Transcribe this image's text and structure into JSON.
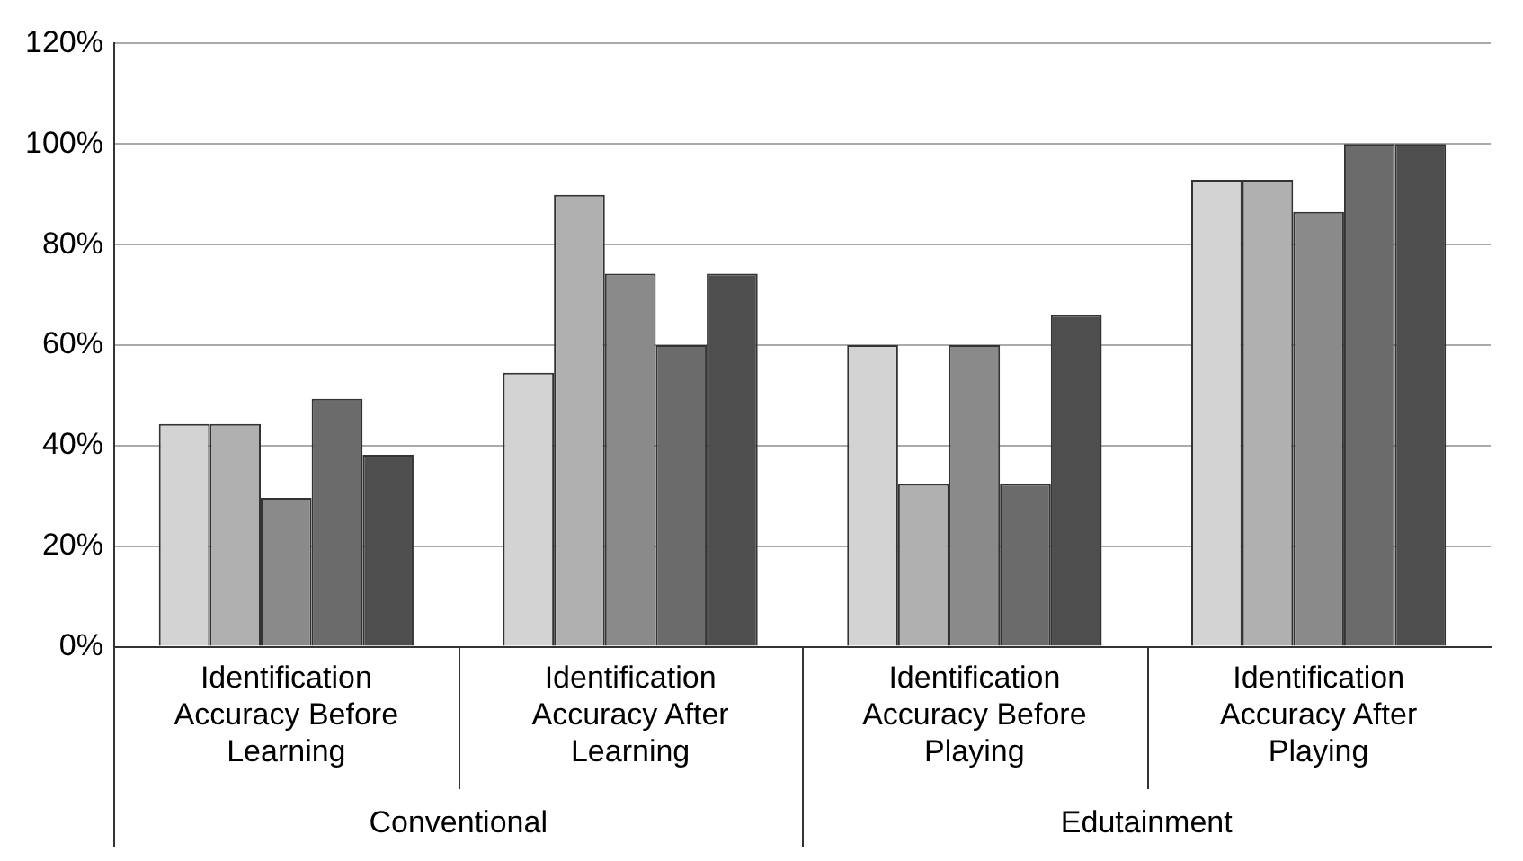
{
  "chart_data": {
    "type": "bar",
    "categories": [
      "Identification Accuracy Before Learning",
      "Identification Accuracy After Learning",
      "Identification Accuracy Before Playing",
      "Identification Accuracy After Playing"
    ],
    "series": [
      {
        "color": "#d3d3d3",
        "values": [
          44.3,
          54.5,
          60,
          92.9
        ]
      },
      {
        "color": "#b0b0b0",
        "values": [
          44.3,
          89.9,
          32.4,
          92.9
        ]
      },
      {
        "color": "#8a8a8a",
        "values": [
          29.6,
          74.2,
          60,
          86.5
        ]
      },
      {
        "color": "#6b6b6b",
        "values": [
          49.3,
          60,
          32.4,
          100
        ]
      },
      {
        "color": "#4e4e4e",
        "values": [
          38.2,
          74.2,
          66,
          100
        ]
      }
    ],
    "ylim": [
      0,
      120
    ],
    "yticks": [
      {
        "value": 0,
        "label": "0%"
      },
      {
        "value": 20,
        "label": "20%"
      },
      {
        "value": 40,
        "label": "40%"
      },
      {
        "value": 60,
        "label": "60%"
      },
      {
        "value": 80,
        "label": "80%"
      },
      {
        "value": 100,
        "label": "100%"
      },
      {
        "value": 120,
        "label": "120%"
      }
    ],
    "grid": "y",
    "legend": false,
    "annotations": [
      "Conventional",
      "Edutainment"
    ]
  }
}
